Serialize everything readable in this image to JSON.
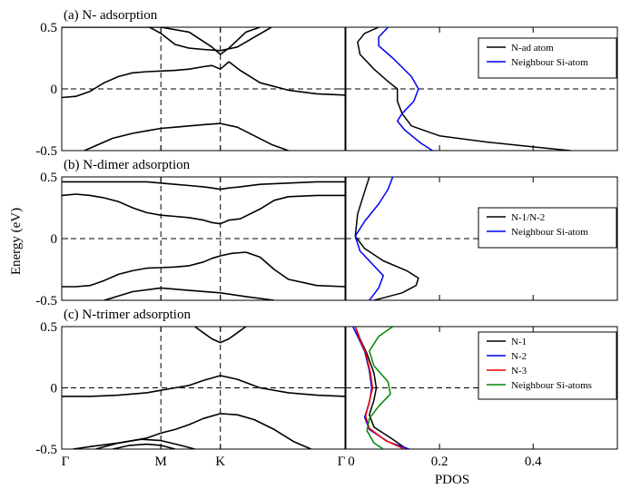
{
  "chart_data": {
    "type": "line",
    "ylabel": "Energy (eV)",
    "xlabel_pdos": "PDOS",
    "ylim": [
      -0.5,
      0.5
    ],
    "yticks": [
      "-0.5",
      "0",
      "0.5"
    ],
    "band_kpoints": [
      "Γ",
      "M",
      "K",
      "Γ"
    ],
    "band_kpoint_positions": [
      0,
      0.35,
      0.56,
      1.0
    ],
    "pdos_xticks": [
      "0",
      "0.2",
      "0.4"
    ],
    "pdos_xtick_values": [
      0,
      0.2,
      0.4
    ],
    "pdos_xlim": [
      0,
      0.58
    ],
    "panels": [
      {
        "title": "(a) N- adsorption",
        "legend": [
          "N-ad atom",
          "Neighbour Si-atom"
        ],
        "bands": [
          {
            "x": [
              0,
              0.05,
              0.15,
              0.25,
              0.35,
              0.45,
              0.53,
              0.56,
              0.59,
              0.65,
              0.7
            ],
            "y": [
              0.5,
              0.5,
              0.5,
              0.5,
              0.5,
              0.46,
              0.34,
              0.28,
              0.33,
              0.46,
              0.5
            ]
          },
          {
            "x": [
              0,
              0.05,
              0.1,
              0.15,
              0.2,
              0.25,
              0.3,
              0.35,
              0.4,
              0.45,
              0.5,
              0.53,
              0.56,
              0.59,
              0.63,
              0.7,
              0.8,
              0.9,
              1.0
            ],
            "y": [
              -0.07,
              -0.06,
              -0.02,
              0.05,
              0.1,
              0.13,
              0.14,
              0.145,
              0.15,
              0.16,
              0.18,
              0.19,
              0.16,
              0.22,
              0.15,
              0.05,
              -0.01,
              -0.04,
              -0.05
            ]
          },
          {
            "x": [
              0.31,
              0.35,
              0.4,
              0.45,
              0.5,
              0.56,
              0.62,
              0.68,
              0.74
            ],
            "y": [
              0.5,
              0.45,
              0.36,
              0.33,
              0.32,
              0.31,
              0.34,
              0.42,
              0.5
            ]
          },
          {
            "x": [
              0.08,
              0.12,
              0.18,
              0.25,
              0.3,
              0.35,
              0.4,
              0.45,
              0.5,
              0.56,
              0.62,
              0.68,
              0.74,
              0.8
            ],
            "y": [
              -0.5,
              -0.46,
              -0.4,
              -0.36,
              -0.34,
              -0.32,
              -0.31,
              -0.3,
              -0.29,
              -0.28,
              -0.31,
              -0.38,
              -0.45,
              -0.5
            ]
          }
        ],
        "pdos": [
          {
            "name": "N-ad atom",
            "color": "#000000",
            "x": [
              0.07,
              0.04,
              0.025,
              0.03,
              0.06,
              0.09,
              0.11,
              0.11,
              0.12,
              0.14,
              0.2,
              0.3,
              0.4,
              0.48
            ],
            "y": [
              0.5,
              0.45,
              0.38,
              0.28,
              0.16,
              0.06,
              0.0,
              -0.1,
              -0.2,
              -0.3,
              -0.38,
              -0.43,
              -0.47,
              -0.5
            ]
          },
          {
            "name": "Neighbour Si-atom",
            "color": "#0000ee",
            "x": [
              0.09,
              0.07,
              0.07,
              0.1,
              0.14,
              0.155,
              0.145,
              0.12,
              0.11,
              0.125,
              0.16,
              0.185
            ],
            "y": [
              0.5,
              0.42,
              0.35,
              0.25,
              0.1,
              0.0,
              -0.1,
              -0.2,
              -0.26,
              -0.33,
              -0.44,
              -0.5
            ]
          }
        ]
      },
      {
        "title": "(b) N-dimer adsorption",
        "legend": [
          "N-1/N-2",
          "Neighbour Si-atom"
        ],
        "bands": [
          {
            "x": [
              0,
              0.05,
              0.1,
              0.15,
              0.2,
              0.25,
              0.3,
              0.35,
              0.4,
              0.45,
              0.5,
              0.53,
              0.56,
              0.59,
              0.63,
              0.7,
              0.8,
              0.9,
              1.0
            ],
            "y": [
              0.46,
              0.46,
              0.46,
              0.46,
              0.46,
              0.46,
              0.46,
              0.45,
              0.44,
              0.43,
              0.42,
              0.41,
              0.4,
              0.41,
              0.42,
              0.44,
              0.45,
              0.46,
              0.46
            ]
          },
          {
            "x": [
              0,
              0.05,
              0.1,
              0.15,
              0.2,
              0.25,
              0.3,
              0.35,
              0.4,
              0.45,
              0.5,
              0.53,
              0.56,
              0.59,
              0.63,
              0.7,
              0.75,
              0.8,
              0.9,
              1.0
            ],
            "y": [
              0.35,
              0.36,
              0.35,
              0.33,
              0.3,
              0.25,
              0.21,
              0.19,
              0.18,
              0.17,
              0.15,
              0.13,
              0.12,
              0.15,
              0.16,
              0.24,
              0.31,
              0.34,
              0.35,
              0.35
            ]
          },
          {
            "x": [
              0,
              0.05,
              0.1,
              0.15,
              0.2,
              0.25,
              0.3,
              0.35,
              0.4,
              0.45,
              0.5,
              0.53,
              0.56,
              0.6,
              0.65,
              0.7,
              0.75,
              0.8,
              0.9,
              1.0
            ],
            "y": [
              -0.39,
              -0.39,
              -0.38,
              -0.34,
              -0.29,
              -0.26,
              -0.24,
              -0.235,
              -0.23,
              -0.22,
              -0.19,
              -0.16,
              -0.14,
              -0.12,
              -0.11,
              -0.15,
              -0.25,
              -0.33,
              -0.38,
              -0.39
            ]
          },
          {
            "x": [
              0.15,
              0.25,
              0.35,
              0.45,
              0.56,
              0.65,
              0.75
            ],
            "y": [
              -0.5,
              -0.43,
              -0.4,
              -0.42,
              -0.44,
              -0.47,
              -0.5
            ]
          }
        ],
        "pdos": [
          {
            "name": "N-1/N-2",
            "color": "#000000",
            "x": [
              0.05,
              0.04,
              0.025,
              0.02,
              0.04,
              0.08,
              0.13,
              0.155,
              0.15,
              0.12,
              0.08,
              0.06
            ],
            "y": [
              0.5,
              0.38,
              0.2,
              0.02,
              -0.08,
              -0.18,
              -0.26,
              -0.32,
              -0.38,
              -0.44,
              -0.48,
              -0.5
            ]
          },
          {
            "name": "Neighbour Si-atom",
            "color": "#0000ee",
            "x": [
              0.1,
              0.09,
              0.07,
              0.04,
              0.02,
              0.03,
              0.06,
              0.08,
              0.07,
              0.05
            ],
            "y": [
              0.5,
              0.4,
              0.28,
              0.14,
              0.02,
              -0.1,
              -0.22,
              -0.3,
              -0.4,
              -0.5
            ]
          }
        ]
      },
      {
        "title": "(c) N-trimer adsorption",
        "legend": [
          "N-1",
          "N-2",
          "N-3",
          "Neighbour Si-atoms"
        ],
        "bands": [
          {
            "x": [
              0.47,
              0.5,
              0.53,
              0.56,
              0.59,
              0.62,
              0.65
            ],
            "y": [
              0.5,
              0.45,
              0.4,
              0.37,
              0.4,
              0.45,
              0.5
            ]
          },
          {
            "x": [
              0,
              0.1,
              0.2,
              0.3,
              0.35,
              0.4,
              0.45,
              0.5,
              0.56,
              0.62,
              0.7,
              0.8,
              0.9,
              1.0
            ],
            "y": [
              -0.07,
              -0.07,
              -0.06,
              -0.04,
              -0.02,
              0.0,
              0.02,
              0.06,
              0.1,
              0.07,
              0.0,
              -0.04,
              -0.06,
              -0.07
            ]
          },
          {
            "x": [
              0.04,
              0.1,
              0.2,
              0.3,
              0.35,
              0.4,
              0.45,
              0.5,
              0.56,
              0.62,
              0.68,
              0.75,
              0.82,
              0.88
            ],
            "y": [
              -0.5,
              -0.48,
              -0.45,
              -0.41,
              -0.37,
              -0.34,
              -0.3,
              -0.25,
              -0.21,
              -0.22,
              -0.26,
              -0.34,
              -0.44,
              -0.5
            ]
          },
          {
            "x": [
              0.12,
              0.2,
              0.28,
              0.35,
              0.42,
              0.47
            ],
            "y": [
              -0.5,
              -0.45,
              -0.42,
              -0.43,
              -0.47,
              -0.5
            ]
          },
          {
            "x": [
              0.18,
              0.24,
              0.3,
              0.35,
              0.4
            ],
            "y": [
              -0.5,
              -0.47,
              -0.46,
              -0.47,
              -0.5
            ]
          }
        ],
        "pdos": [
          {
            "name": "N-1",
            "color": "#000000",
            "x": [
              0.02,
              0.03,
              0.045,
              0.06,
              0.065,
              0.06,
              0.05,
              0.06,
              0.1,
              0.13
            ],
            "y": [
              0.5,
              0.4,
              0.28,
              0.12,
              0.0,
              -0.1,
              -0.22,
              -0.32,
              -0.42,
              -0.5
            ]
          },
          {
            "name": "N-2",
            "color": "#0000ee",
            "x": [
              0.015,
              0.025,
              0.04,
              0.05,
              0.055,
              0.05,
              0.04,
              0.05,
              0.09,
              0.135
            ],
            "y": [
              0.5,
              0.42,
              0.3,
              0.14,
              0.0,
              -0.12,
              -0.24,
              -0.34,
              -0.44,
              -0.5
            ]
          },
          {
            "name": "N-3",
            "color": "#ee0000",
            "x": [
              0.02,
              0.028,
              0.042,
              0.052,
              0.057,
              0.05,
              0.042,
              0.05,
              0.085,
              0.125
            ],
            "y": [
              0.5,
              0.41,
              0.29,
              0.13,
              0.0,
              -0.11,
              -0.23,
              -0.33,
              -0.43,
              -0.5
            ]
          },
          {
            "name": "Neighbour Si-atoms",
            "color": "#008800",
            "x": [
              0.1,
              0.07,
              0.05,
              0.06,
              0.09,
              0.095,
              0.07,
              0.05,
              0.045,
              0.06,
              0.08
            ],
            "y": [
              0.5,
              0.42,
              0.3,
              0.18,
              0.05,
              -0.05,
              -0.15,
              -0.25,
              -0.35,
              -0.45,
              -0.5
            ]
          }
        ]
      }
    ]
  }
}
